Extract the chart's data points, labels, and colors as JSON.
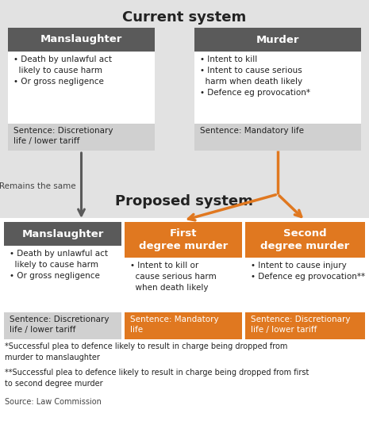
{
  "title_current": "Current system",
  "title_proposed": "Proposed system",
  "gray_bg": "#e2e2e2",
  "white_bg": "#ffffff",
  "dark_header": "#5a5a5a",
  "orange": "#e07820",
  "sentence_gray": "#d0d0d0",
  "manslaughter_current": {
    "title": "Manslaughter",
    "bullets": "• Death by unlawful act\n  likely to cause harm\n• Or gross negligence",
    "sentence": "Sentence: Discretionary\nlife / lower tariff"
  },
  "murder_current": {
    "title": "Murder",
    "bullets": "• Intent to kill\n• Intent to cause serious\n  harm when death likely\n• Defence eg provocation*",
    "sentence": "Sentence: Mandatory life"
  },
  "manslaughter_proposed": {
    "title": "Manslaughter",
    "bullets": "• Death by unlawful act\n  likely to cause harm\n• Or gross negligence",
    "sentence": "Sentence: Discretionary\nlife / lower tariff"
  },
  "first_degree": {
    "title": "First\ndegree murder",
    "bullets": "• Intent to kill or\n  cause serious harm\n  when death likely",
    "sentence": "Sentence: Mandatory\nlife"
  },
  "second_degree": {
    "title": "Second\ndegree murder",
    "bullets": "• Intent to cause injury\n• Defence eg provocation**",
    "sentence": "Sentence: Discretionary\nlife / lower tariff"
  },
  "remains_text": "Remains the same",
  "footnote1": "*Successful plea to defence likely to result in charge being dropped from\nmurder to manslaughter",
  "footnote2": "**Successful plea to defence likely to result in charge being dropped from first\nto second degree murder",
  "source": "Source: Law Commission",
  "fig_w": 4.65,
  "fig_h": 5.5,
  "dpi": 100
}
